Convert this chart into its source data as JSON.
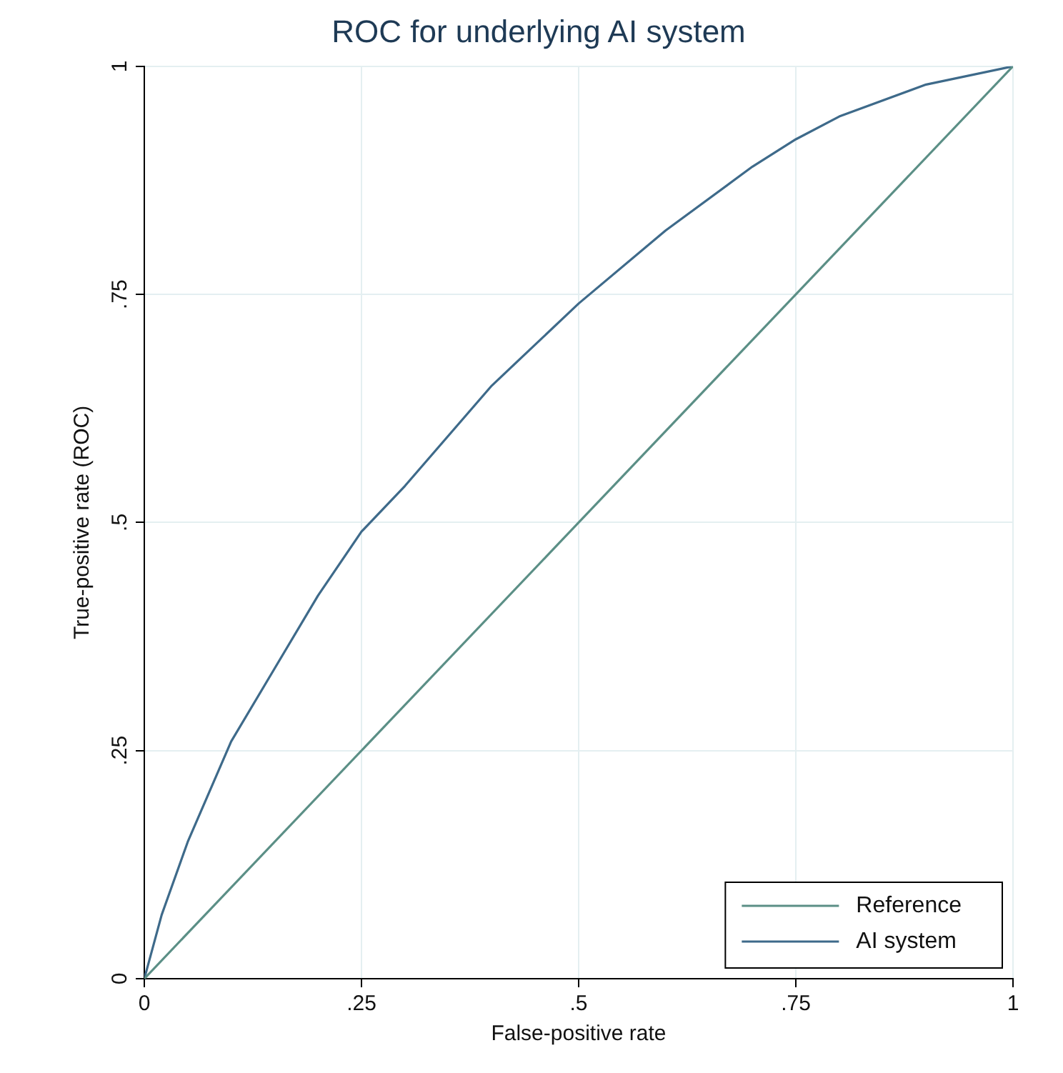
{
  "chart_data": {
    "type": "line",
    "title": "ROC for underlying AI system",
    "xlabel": "False-positive rate",
    "ylabel": "True-positive rate (ROC)",
    "xlim": [
      0,
      1
    ],
    "ylim": [
      0,
      1
    ],
    "xticks": [
      0,
      {
        "value": 0.25,
        "label": ".25"
      },
      {
        "value": 0.5,
        "label": ".5"
      },
      {
        "value": 0.75,
        "label": ".75"
      },
      1
    ],
    "yticks": [
      0,
      {
        "value": 0.25,
        "label": ".25"
      },
      {
        "value": 0.5,
        "label": ".5"
      },
      {
        "value": 0.75,
        "label": ".75"
      },
      1
    ],
    "grid": true,
    "legend": "bottom right",
    "marker": "none",
    "line_style": "solid",
    "series": [
      {
        "name": "Reference",
        "color": "#5b8f86",
        "x": [
          0,
          1
        ],
        "values": [
          0,
          1
        ]
      },
      {
        "name": "AI system",
        "color": "#3e6a8a",
        "x": [
          0,
          0.02,
          0.05,
          0.1,
          0.15,
          0.2,
          0.25,
          0.3,
          0.4,
          0.5,
          0.6,
          0.7,
          0.75,
          0.8,
          0.9,
          1
        ],
        "values": [
          0,
          0.07,
          0.15,
          0.26,
          0.34,
          0.42,
          0.49,
          0.54,
          0.65,
          0.74,
          0.82,
          0.89,
          0.92,
          0.945,
          0.98,
          1
        ]
      }
    ]
  }
}
